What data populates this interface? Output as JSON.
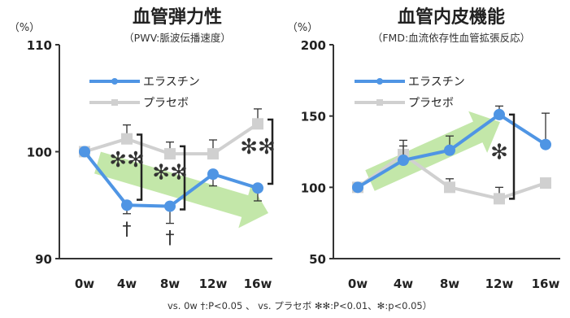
{
  "colors": {
    "active": "#4f95e4",
    "placebo": "#d0d0d0",
    "arrow": "#b9e39a",
    "axis": "#333333",
    "bracket": "#222222"
  },
  "chart_data": [
    {
      "type": "line",
      "title": "血管弾力性",
      "subtitle": "（PWV:脈波伝播速度）",
      "ylabel": "（%）",
      "categories": [
        "0w",
        "4w",
        "8w",
        "12w",
        "16w"
      ],
      "ylim": [
        90,
        110
      ],
      "yticks": [
        90,
        100,
        110
      ],
      "legend_position": "top-left",
      "series": [
        {
          "name": "エラスチン",
          "values": [
            100,
            95.0,
            94.9,
            97.9,
            96.6
          ],
          "error": [
            0,
            0.8,
            1.6,
            1.1,
            1.2
          ]
        },
        {
          "name": "プラセボ",
          "values": [
            100,
            101.2,
            99.8,
            99.8,
            102.6
          ],
          "error": [
            0,
            1.3,
            1.1,
            1.3,
            1.4
          ]
        }
      ],
      "annotations": [
        {
          "text": "✻✻",
          "category_index": 1,
          "y": 98.6
        },
        {
          "text": "✻✻",
          "category_index": 2,
          "y": 97.4
        },
        {
          "text": "✻✻",
          "category_index": 4,
          "y": 99.8
        },
        {
          "text": "†",
          "category_index": 1,
          "y": 92.2
        },
        {
          "text": "†",
          "category_index": 2,
          "y": 91.4
        }
      ],
      "brackets": [
        {
          "category_index": 1,
          "from": 101.6,
          "to": 95.5
        },
        {
          "category_index": 2,
          "from": 100.5,
          "to": 94.6
        },
        {
          "category_index": 4,
          "from": 103.0,
          "to": 97.0
        }
      ]
    },
    {
      "type": "line",
      "title": "血管内皮機能",
      "subtitle": "（FMD:血流依存性血管拡張反応）",
      "ylabel": "（%）",
      "categories": [
        "0w",
        "4w",
        "8w",
        "12w",
        "16w"
      ],
      "ylim": [
        50,
        200
      ],
      "yticks": [
        50,
        100,
        150,
        200
      ],
      "legend_position": "top-left",
      "series": [
        {
          "name": "エラスチン",
          "values": [
            100,
            119,
            126,
            151,
            130
          ],
          "error": [
            0,
            10,
            10,
            6,
            22
          ]
        },
        {
          "name": "プラセボ",
          "values": [
            100,
            123,
            100,
            92,
            103
          ],
          "error": [
            0,
            10,
            6,
            8,
            3
          ]
        }
      ],
      "annotations": [
        {
          "text": "✻",
          "category_index": 3,
          "y": 120
        }
      ],
      "brackets": [
        {
          "category_index": 3,
          "from": 151,
          "to": 92
        }
      ]
    }
  ],
  "footnote": "vs. 0w  †:P<0.05 、 vs. プラセボ  ✻✻:P<0.01、✻:p<0.05）"
}
